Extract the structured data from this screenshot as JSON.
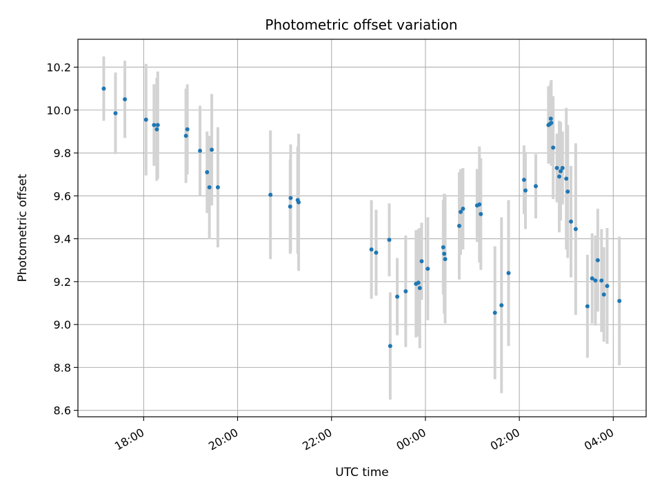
{
  "chart_data": {
    "type": "scatter",
    "title": "Photometric offset variation",
    "xlabel": "UTC time",
    "ylabel": "Photometric offset",
    "grid": true,
    "x_unit": "hours since 00:00 UTC (negative = previous day)",
    "xlim": [
      -7.4,
      4.7
    ],
    "ylim": [
      8.57,
      10.33
    ],
    "x_ticks": [
      {
        "value": -6,
        "label": "18:00"
      },
      {
        "value": -4,
        "label": "20:00"
      },
      {
        "value": -2,
        "label": "22:00"
      },
      {
        "value": 0,
        "label": "00:00"
      },
      {
        "value": 2,
        "label": "02:00"
      },
      {
        "value": 4,
        "label": "04:00"
      }
    ],
    "y_ticks": [
      {
        "value": 8.6,
        "label": "8.6"
      },
      {
        "value": 8.8,
        "label": "8.8"
      },
      {
        "value": 9.0,
        "label": "9.0"
      },
      {
        "value": 9.2,
        "label": "9.2"
      },
      {
        "value": 9.4,
        "label": "9.4"
      },
      {
        "value": 9.6,
        "label": "9.6"
      },
      {
        "value": 9.8,
        "label": "9.8"
      },
      {
        "value": 10.0,
        "label": "10.0"
      },
      {
        "value": 10.2,
        "label": "10.2"
      }
    ],
    "colors": {
      "point": "#1f77b4",
      "errorbar": "#d3d3d3",
      "grid": "#b0b0b0"
    },
    "series": [
      {
        "name": "offset",
        "points": [
          {
            "x": -6.85,
            "y": 10.1,
            "err": 0.15
          },
          {
            "x": -6.6,
            "y": 9.985,
            "err": 0.19
          },
          {
            "x": -6.4,
            "y": 10.05,
            "err": 0.18
          },
          {
            "x": -5.95,
            "y": 9.955,
            "err": 0.26
          },
          {
            "x": -5.78,
            "y": 9.93,
            "err": 0.19
          },
          {
            "x": -5.72,
            "y": 9.91,
            "err": 0.24
          },
          {
            "x": -5.7,
            "y": 9.93,
            "err": 0.25
          },
          {
            "x": -5.1,
            "y": 9.88,
            "err": 0.22
          },
          {
            "x": -5.07,
            "y": 9.91,
            "err": 0.21
          },
          {
            "x": -4.8,
            "y": 9.81,
            "err": 0.21
          },
          {
            "x": -4.65,
            "y": 9.71,
            "err": 0.19
          },
          {
            "x": -4.6,
            "y": 9.64,
            "err": 0.24
          },
          {
            "x": -4.55,
            "y": 9.815,
            "err": 0.26
          },
          {
            "x": -4.42,
            "y": 9.64,
            "err": 0.28
          },
          {
            "x": -3.3,
            "y": 9.605,
            "err": 0.3
          },
          {
            "x": -2.88,
            "y": 9.55,
            "err": 0.22
          },
          {
            "x": -2.87,
            "y": 9.59,
            "err": 0.25
          },
          {
            "x": -2.72,
            "y": 9.58,
            "err": 0.25
          },
          {
            "x": -2.7,
            "y": 9.57,
            "err": 0.32
          },
          {
            "x": -1.15,
            "y": 9.35,
            "err": 0.23
          },
          {
            "x": -1.05,
            "y": 9.335,
            "err": 0.2
          },
          {
            "x": -0.77,
            "y": 9.395,
            "err": 0.17
          },
          {
            "x": -0.75,
            "y": 8.9,
            "err": 0.25
          },
          {
            "x": -0.6,
            "y": 9.13,
            "err": 0.18
          },
          {
            "x": -0.42,
            "y": 9.155,
            "err": 0.26
          },
          {
            "x": -0.2,
            "y": 9.19,
            "err": 0.25
          },
          {
            "x": -0.15,
            "y": 9.195,
            "err": 0.25
          },
          {
            "x": -0.12,
            "y": 9.17,
            "err": 0.28
          },
          {
            "x": -0.08,
            "y": 9.295,
            "err": 0.18
          },
          {
            "x": 0.05,
            "y": 9.26,
            "err": 0.24
          },
          {
            "x": 0.38,
            "y": 9.36,
            "err": 0.22
          },
          {
            "x": 0.4,
            "y": 9.33,
            "err": 0.28
          },
          {
            "x": 0.42,
            "y": 9.305,
            "err": 0.3
          },
          {
            "x": 0.72,
            "y": 9.46,
            "err": 0.25
          },
          {
            "x": 0.75,
            "y": 9.525,
            "err": 0.2
          },
          {
            "x": 0.8,
            "y": 9.54,
            "err": 0.19
          },
          {
            "x": 1.1,
            "y": 9.555,
            "err": 0.17
          },
          {
            "x": 1.15,
            "y": 9.56,
            "err": 0.27
          },
          {
            "x": 1.18,
            "y": 9.515,
            "err": 0.26
          },
          {
            "x": 1.48,
            "y": 9.055,
            "err": 0.31
          },
          {
            "x": 1.62,
            "y": 9.09,
            "err": 0.41
          },
          {
            "x": 1.77,
            "y": 9.24,
            "err": 0.34
          },
          {
            "x": 2.1,
            "y": 9.675,
            "err": 0.16
          },
          {
            "x": 2.13,
            "y": 9.625,
            "err": 0.18
          },
          {
            "x": 2.35,
            "y": 9.645,
            "err": 0.15
          },
          {
            "x": 2.62,
            "y": 9.93,
            "err": 0.18
          },
          {
            "x": 2.65,
            "y": 9.935,
            "err": 0.18
          },
          {
            "x": 2.67,
            "y": 9.96,
            "err": 0.17
          },
          {
            "x": 2.68,
            "y": 9.94,
            "err": 0.2
          },
          {
            "x": 2.72,
            "y": 9.825,
            "err": 0.24
          },
          {
            "x": 2.8,
            "y": 9.73,
            "err": 0.16
          },
          {
            "x": 2.85,
            "y": 9.69,
            "err": 0.26
          },
          {
            "x": 2.88,
            "y": 9.715,
            "err": 0.23
          },
          {
            "x": 2.92,
            "y": 9.73,
            "err": 0.17
          },
          {
            "x": 3.0,
            "y": 9.68,
            "err": 0.33
          },
          {
            "x": 3.03,
            "y": 9.62,
            "err": 0.31
          },
          {
            "x": 3.1,
            "y": 9.48,
            "err": 0.26
          },
          {
            "x": 3.2,
            "y": 9.445,
            "err": 0.4
          },
          {
            "x": 3.45,
            "y": 9.085,
            "err": 0.24
          },
          {
            "x": 3.55,
            "y": 9.215,
            "err": 0.21
          },
          {
            "x": 3.62,
            "y": 9.205,
            "err": 0.21
          },
          {
            "x": 3.67,
            "y": 9.3,
            "err": 0.24
          },
          {
            "x": 3.75,
            "y": 9.205,
            "err": 0.24
          },
          {
            "x": 3.8,
            "y": 9.14,
            "err": 0.22
          },
          {
            "x": 3.87,
            "y": 9.18,
            "err": 0.27
          },
          {
            "x": 4.13,
            "y": 9.11,
            "err": 0.3
          }
        ]
      }
    ]
  }
}
